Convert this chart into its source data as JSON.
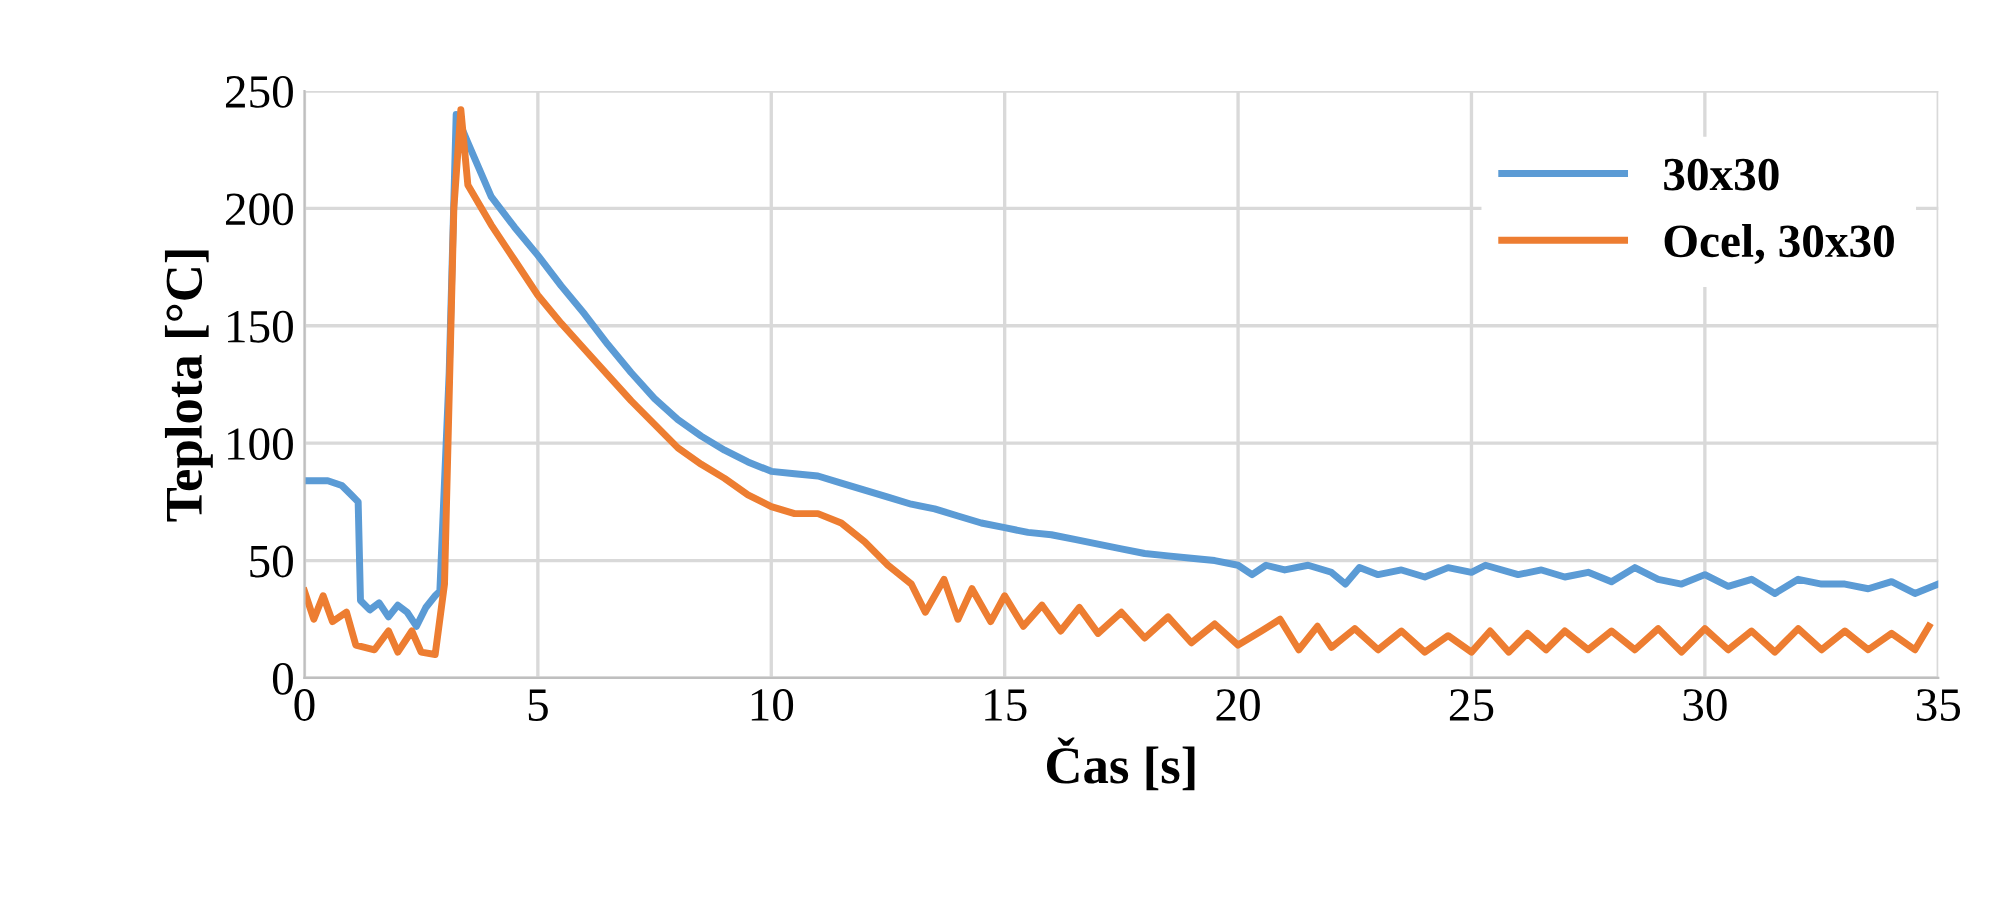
{
  "chart_data": {
    "type": "line",
    "xlabel": "Čas [s]",
    "ylabel": "Teplota [°C]",
    "xlim": [
      0,
      35
    ],
    "xticks": [
      0,
      5,
      10,
      15,
      20,
      25,
      30,
      35
    ],
    "ylim": [
      0,
      250
    ],
    "yticks": [
      0,
      50,
      100,
      150,
      200,
      250
    ],
    "grid": true,
    "legend": "top right",
    "series": [
      {
        "name": "30x30",
        "color": "#5b9bd5",
        "x": [
          0,
          0.5,
          0.8,
          1.0,
          1.15,
          1.2,
          1.4,
          1.6,
          1.8,
          2.0,
          2.2,
          2.4,
          2.6,
          2.8,
          2.9,
          3.1,
          3.25,
          3.5,
          4,
          4.5,
          5,
          5.5,
          6,
          6.5,
          7,
          7.5,
          8,
          8.5,
          9,
          9.5,
          10,
          10.5,
          11,
          11.5,
          12,
          12.5,
          13,
          13.5,
          14,
          14.5,
          15,
          15.5,
          16,
          16.5,
          17,
          17.5,
          18,
          18.5,
          19,
          19.5,
          20,
          20.3,
          20.6,
          21,
          21.5,
          22,
          22.3,
          22.6,
          23,
          23.5,
          24,
          24.5,
          25,
          25.3,
          26,
          26.5,
          27,
          27.5,
          28,
          28.5,
          29,
          29.5,
          30,
          30.5,
          31,
          31.5,
          32,
          32.5,
          33,
          33.5,
          34,
          34.5,
          35
        ],
        "values": [
          84,
          84,
          82,
          78,
          75,
          33,
          29,
          32,
          26,
          31,
          28,
          22,
          30,
          35,
          37,
          130,
          240,
          228,
          205,
          192,
          180,
          167,
          155,
          142,
          130,
          119,
          110,
          103,
          97,
          92,
          88,
          87,
          86,
          83,
          80,
          77,
          74,
          72,
          69,
          66,
          64,
          62,
          61,
          59,
          57,
          55,
          53,
          52,
          51,
          50,
          48,
          44,
          48,
          46,
          48,
          45,
          40,
          47,
          44,
          46,
          43,
          47,
          45,
          48,
          44,
          46,
          43,
          45,
          41,
          47,
          42,
          40,
          44,
          39,
          42,
          36,
          42,
          40,
          40,
          38,
          41,
          36,
          40
        ]
      },
      {
        "name": "Ocel, 30x30",
        "color": "#ed7d31",
        "x": [
          0,
          0.2,
          0.4,
          0.6,
          0.9,
          1.1,
          1.5,
          1.8,
          2.0,
          2.3,
          2.5,
          2.8,
          3.0,
          3.2,
          3.35,
          3.5,
          4,
          4.5,
          5,
          5.5,
          6,
          6.5,
          7,
          7.5,
          8,
          8.5,
          9,
          9.5,
          10,
          10.5,
          11,
          11.5,
          12,
          12.5,
          13,
          13.3,
          13.7,
          14,
          14.3,
          14.7,
          15,
          15.4,
          15.8,
          16.2,
          16.6,
          17,
          17.5,
          18,
          18.5,
          19,
          19.5,
          20,
          20.5,
          20.9,
          21.3,
          21.7,
          22,
          22.5,
          23,
          23.5,
          24,
          24.5,
          25,
          25.4,
          25.8,
          26.2,
          26.6,
          27,
          27.5,
          28,
          28.5,
          29,
          29.5,
          30,
          30.5,
          31,
          31.5,
          32,
          32.5,
          33,
          33.5,
          34,
          34.5,
          34.8
        ],
        "values": [
          37,
          25,
          35,
          24,
          28,
          14,
          12,
          20,
          11,
          20,
          11,
          10,
          40,
          200,
          242,
          210,
          193,
          178,
          163,
          151,
          140,
          129,
          118,
          108,
          98,
          91,
          85,
          78,
          73,
          70,
          70,
          66,
          58,
          48,
          40,
          28,
          42,
          25,
          38,
          24,
          35,
          22,
          31,
          20,
          30,
          19,
          28,
          17,
          26,
          15,
          23,
          14,
          20,
          25,
          12,
          22,
          13,
          21,
          12,
          20,
          11,
          18,
          11,
          20,
          11,
          19,
          12,
          20,
          12,
          20,
          12,
          21,
          11,
          21,
          12,
          20,
          11,
          21,
          12,
          20,
          12,
          19,
          12,
          22
        ]
      }
    ]
  }
}
